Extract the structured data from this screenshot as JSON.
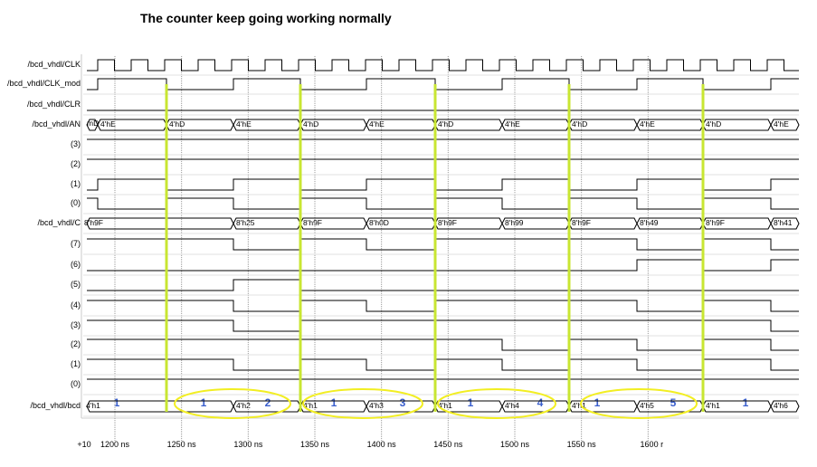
{
  "title": "The counter keep going working normally",
  "signals": [
    {
      "key": "clk",
      "label": "/bcd_vhdl/CLK"
    },
    {
      "key": "clkmod",
      "label": "/bcd_vhdl/CLK_mod"
    },
    {
      "key": "clr",
      "label": "/bcd_vhdl/CLR"
    },
    {
      "key": "an",
      "label": "/bcd_vhdl/AN"
    },
    {
      "key": "an3",
      "label": "(3)"
    },
    {
      "key": "an2",
      "label": "(2)"
    },
    {
      "key": "an1",
      "label": "(1)"
    },
    {
      "key": "an0",
      "label": "(0)"
    },
    {
      "key": "c",
      "label": "/bcd_vhdl/C"
    },
    {
      "key": "c7",
      "label": "(7)"
    },
    {
      "key": "c6",
      "label": "(6)"
    },
    {
      "key": "c5",
      "label": "(5)"
    },
    {
      "key": "c4",
      "label": "(4)"
    },
    {
      "key": "c3",
      "label": "(3)"
    },
    {
      "key": "c2",
      "label": "(2)"
    },
    {
      "key": "c1",
      "label": "(1)"
    },
    {
      "key": "c0",
      "label": "(0)"
    },
    {
      "key": "bcd",
      "label": "/bcd_vhdl/bcd"
    }
  ],
  "an_values": {
    "start": "mD",
    "list": [
      "4'hE",
      "4'hD",
      "4'hE",
      "4'hD",
      "4'hE",
      "4'hD",
      "4'hE",
      "4'hD",
      "4'hE",
      "4'hD",
      "4'hE"
    ]
  },
  "c_values": [
    "8'h9F",
    "8'h25",
    "8'h9F",
    "8'h0D",
    "8'h9F",
    "8'h99",
    "8'h9F",
    "8'h49",
    "8'h9F",
    "8'h41"
  ],
  "bcd_values": [
    "4'h1",
    "4'h2",
    "4'h1",
    "4'h3",
    "4'h1",
    "4'h4",
    "4'h1",
    "4'h5",
    "4'h1",
    "4'h6"
  ],
  "counter_annotations": [
    "1",
    "1",
    "2",
    "1",
    "3",
    "1",
    "4",
    "1",
    "5",
    "1"
  ],
  "time_axis": {
    "start_label": "+10",
    "ticks": [
      "1200 ns",
      "1250 ns",
      "1300 ns",
      "1350 ns",
      "1400 ns",
      "1450 ns",
      "1500 ns",
      "1550 ns",
      "1600 r"
    ]
  },
  "colors": {
    "marker": "#c8e632",
    "ellipse": "#f2ee22",
    "annotation": "#3a5fcd",
    "grid": "#9a9a9a"
  }
}
